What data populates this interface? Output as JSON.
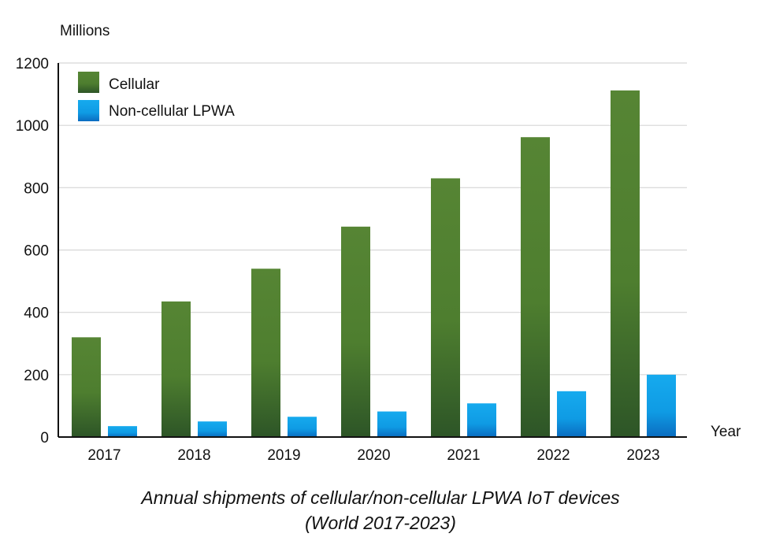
{
  "chart_data": {
    "type": "bar",
    "categories": [
      "2017",
      "2018",
      "2019",
      "2020",
      "2021",
      "2022",
      "2023"
    ],
    "series": [
      {
        "name": "Cellular",
        "values": [
          320,
          435,
          540,
          675,
          830,
          962,
          1112
        ],
        "color": "#4f7f2f"
      },
      {
        "name": "Non-cellular LPWA",
        "values": [
          35,
          50,
          65,
          82,
          108,
          147,
          200
        ],
        "color": "#1a9be0"
      }
    ],
    "ylabel": "Millions",
    "xlabel": "Year",
    "ylim": [
      0,
      1200
    ],
    "yticks": [
      "0",
      "200",
      "400",
      "600",
      "800",
      "1000",
      "1200"
    ],
    "grid": true,
    "legend": "top-left",
    "caption": [
      "Annual shipments of cellular/non-cellular LPWA IoT devices",
      "(World 2017-2023)"
    ]
  }
}
